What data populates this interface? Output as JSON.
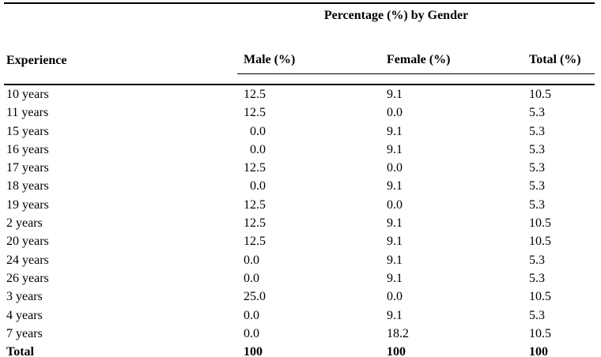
{
  "table": {
    "group_header": "Percentage (%) by Gender",
    "columns": [
      "Experience",
      "Male (%)",
      "Female (%)",
      "Total (%)"
    ],
    "rows": [
      [
        "10 years",
        "12.5",
        "9.1",
        "10.5"
      ],
      [
        "11 years",
        "12.5",
        "0.0",
        "5.3"
      ],
      [
        "15 years",
        "  0.0",
        "9.1",
        "5.3"
      ],
      [
        "16 years",
        "  0.0",
        "9.1",
        "5.3"
      ],
      [
        "17 years",
        "12.5",
        "0.0",
        "5.3"
      ],
      [
        "18 years",
        "  0.0",
        "9.1",
        "5.3"
      ],
      [
        "19 years",
        "12.5",
        "0.0",
        "5.3"
      ],
      [
        "2 years",
        "12.5",
        "9.1",
        "10.5"
      ],
      [
        "20 years",
        "12.5",
        "9.1",
        "10.5"
      ],
      [
        "24 years",
        "0.0",
        "9.1",
        "5.3"
      ],
      [
        "26 years",
        "0.0",
        "9.1",
        "5.3"
      ],
      [
        "3 years",
        "25.0",
        "0.0",
        "10.5"
      ],
      [
        "4 years",
        "0.0",
        "9.1",
        "5.3"
      ],
      [
        "7 years",
        "0.0",
        "18.2",
        "10.5"
      ],
      [
        "Total",
        "100",
        "100",
        "100"
      ]
    ]
  },
  "colors": {
    "text": "#000000",
    "background": "#ffffff",
    "rule": "#000000"
  }
}
